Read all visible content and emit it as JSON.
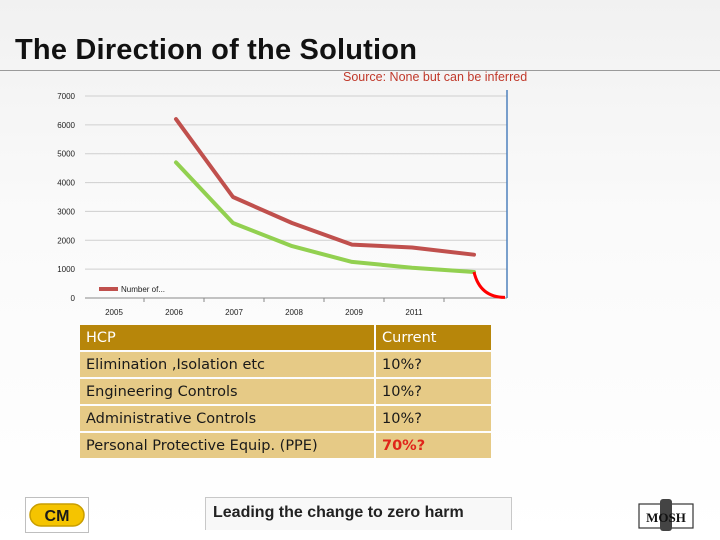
{
  "header": {
    "title": "The Direction of the Solution",
    "source_note": "Source: None but can be inferred"
  },
  "chart_data": {
    "type": "line",
    "title": "",
    "xlabel": "",
    "ylabel": "",
    "categories": [
      "2005",
      "2006",
      "2007",
      "2008",
      "2009",
      "2011"
    ],
    "ylim": [
      0,
      7000
    ],
    "yticks": [
      "0",
      "1000",
      "2000",
      "3000",
      "4000",
      "5000",
      "6000",
      "7000"
    ],
    "grid": true,
    "legend_position": "bottom-left",
    "series": [
      {
        "name": "Number of...",
        "color": "#c0504d",
        "values": [
          6200,
          3500,
          2600,
          1850,
          1750,
          1500
        ]
      },
      {
        "name": "",
        "color": "#92d050",
        "values": [
          4700,
          2600,
          1800,
          1250,
          1050,
          900
        ]
      }
    ],
    "annotation": {
      "color": "#ff0000",
      "from": 900,
      "to": 20
    }
  },
  "table": {
    "header": [
      "HCP",
      "Current"
    ],
    "rows": [
      [
        "Elimination ,Isolation etc",
        "10%?"
      ],
      [
        "Engineering Controls",
        "10%?"
      ],
      [
        "Administrative Controls",
        "10%?"
      ],
      [
        "Personal Protective Equip. (PPE)",
        "70%?"
      ]
    ],
    "highlight_color": "#e0241b"
  },
  "footer": {
    "tagline": "Leading the change to zero harm",
    "logo_left": "CM",
    "logo_right": "MOSH"
  }
}
